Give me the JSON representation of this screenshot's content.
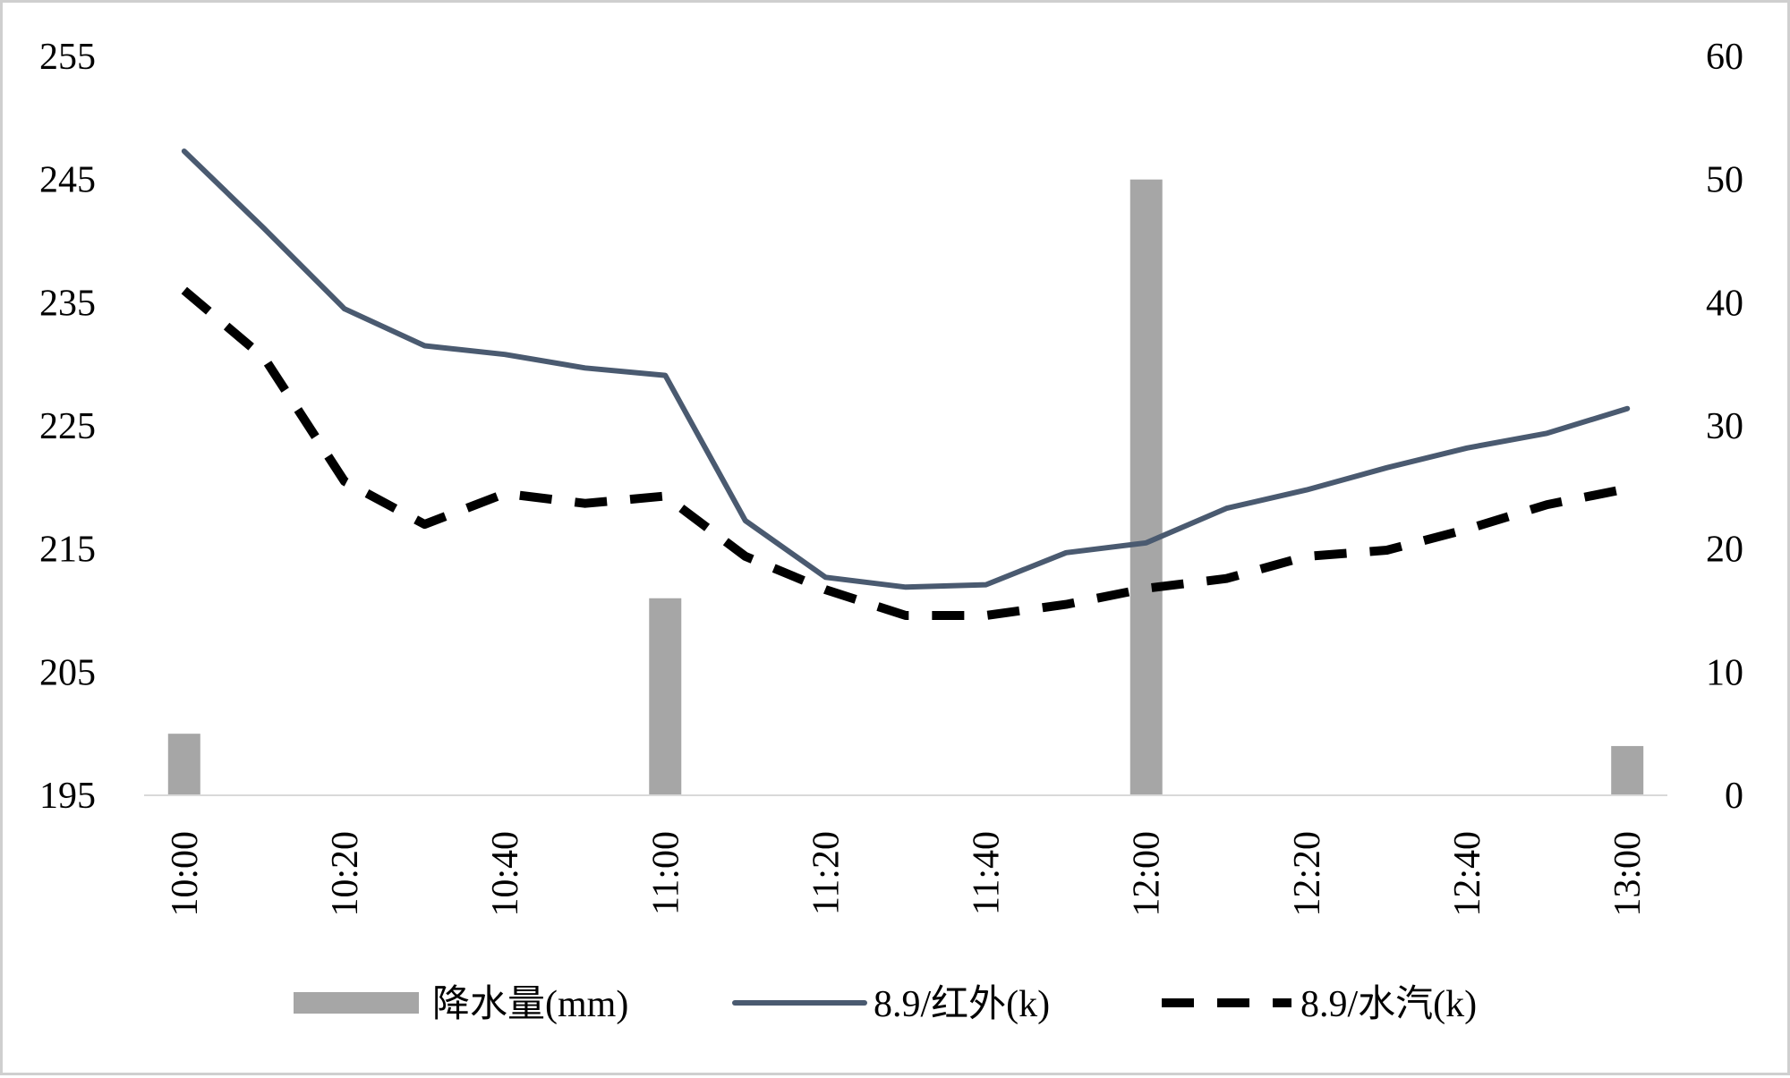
{
  "chart_data": {
    "type": "bar",
    "title": "",
    "xlabel": "",
    "ylabel": "",
    "x": [
      "10:00",
      "10:10",
      "10:20",
      "10:30",
      "10:40",
      "10:50",
      "11:00",
      "11:10",
      "11:20",
      "11:30",
      "11:40",
      "11:50",
      "12:00",
      "12:10",
      "12:20",
      "12:30",
      "12:40",
      "12:50",
      "13:00"
    ],
    "x_tick_labels": [
      "10:00",
      "10:20",
      "10:40",
      "11:00",
      "11:20",
      "11:40",
      "12:00",
      "12:20",
      "12:40",
      "13:00"
    ],
    "y_left": {
      "range": [
        195,
        255
      ],
      "ticks": [
        "195",
        "205",
        "215",
        "225",
        "235",
        "245",
        "255"
      ]
    },
    "y_right": {
      "range": [
        0,
        60
      ],
      "ticks": [
        "0",
        "10",
        "20",
        "30",
        "40",
        "50",
        "60"
      ]
    },
    "grid": false,
    "legend_position": "bottom",
    "series": [
      {
        "name": "降水量(mm)",
        "kind": "bar",
        "axis": "right",
        "color": "#a6a6a6",
        "values": [
          5,
          null,
          null,
          null,
          null,
          null,
          16,
          null,
          null,
          null,
          null,
          null,
          50,
          null,
          null,
          null,
          null,
          null,
          4
        ]
      },
      {
        "name": "8.9/红外(k)",
        "kind": "line",
        "axis": "left",
        "color": "#4a5a70",
        "dash": "solid",
        "values": [
          247.3,
          241,
          234.5,
          231.5,
          230.8,
          229.7,
          229.1,
          217.3,
          212.7,
          211.9,
          212.1,
          214.7,
          215.5,
          218.3,
          219.8,
          221.6,
          223.2,
          224.4,
          226.4
        ]
      },
      {
        "name": "8.9/水汽(k)",
        "kind": "line",
        "axis": "left",
        "color": "#000000",
        "dash": "dashed",
        "values": [
          236,
          230.5,
          220.5,
          217,
          219.5,
          218.7,
          219.3,
          214.4,
          211.7,
          209.6,
          209.6,
          210.5,
          211.8,
          212.6,
          214.4,
          214.9,
          216.6,
          218.6,
          219.9
        ]
      }
    ]
  }
}
